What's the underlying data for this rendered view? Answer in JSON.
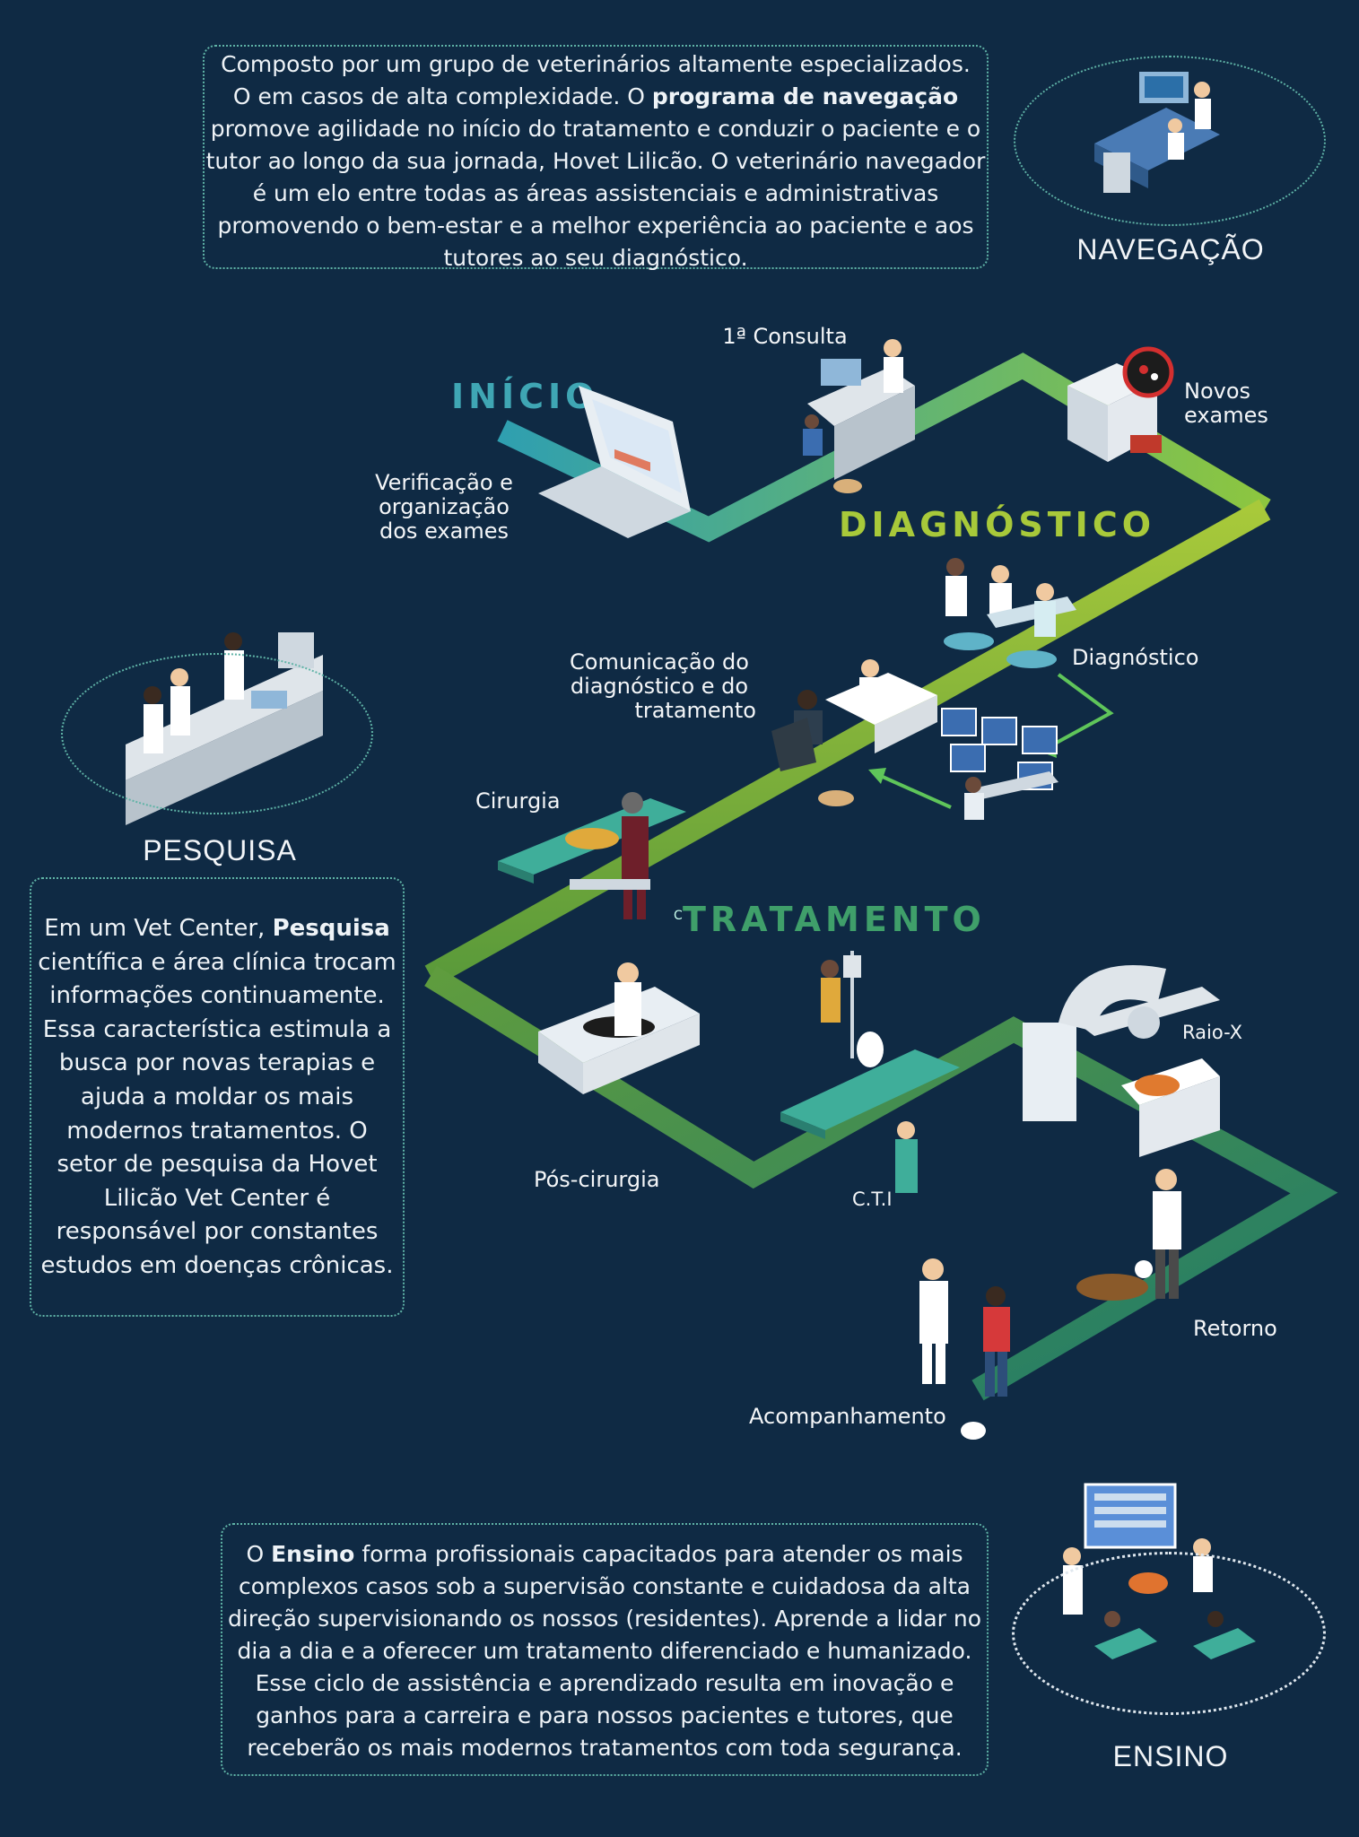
{
  "navegacao": {
    "line1": "Composto por um grupo de veterinários altamente especializados.",
    "line2": "O  em casos de alta complexidade. O ",
    "line2_bold": "programa de navegação",
    "line3": "promove agilidade no início do tratamento e conduzir o paciente e o",
    "line4": "tutor ao longo da sua jornada, Hovet Lilicão. O veterinário navegador",
    "line5": "é um elo entre todas as áreas assistenciais e administrativas",
    "line6": "promovendo o bem-estar e a melhor experiência ao paciente e aos",
    "line7": "tutores ao seu diagnóstico.",
    "title": "NAVEGAÇÃO"
  },
  "pesquisa": {
    "title": "PESQUISA",
    "line1": "Em um Vet Center, ",
    "line1_bold": "Pesquisa",
    "line2": "científica e área clínica trocam",
    "line3": "informações continuamente.",
    "line4": "Essa característica estimula a",
    "line5": "busca por novas terapias e",
    "line6": "ajuda a moldar os mais",
    "line7": "modernos tratamentos. O",
    "line8": "setor de pesquisa da Hovet",
    "line9": "Lilicão Vet Center é",
    "line10": "responsável por constantes",
    "line11": "estudos em doenças crônicas."
  },
  "ensino": {
    "title": "ENSINO",
    "line1_pre": "O ",
    "line1_bold": "Ensino",
    "line1_post": " forma profissionais capacitados para atender os mais",
    "line2": "complexos casos sob a supervisão constante e cuidadosa da alta",
    "line3": "direção supervisionando os nossos (residentes). Aprende a lidar no",
    "line4": "dia a dia e a oferecer um tratamento diferenciado e humanizado.",
    "line5": "Esse ciclo de assistência e aprendizado resulta em inovação e",
    "line6": "ganhos para a carreira e para nossos pacientes e tutores, que",
    "line7": "receberão os mais modernos tratamentos com toda segurança."
  },
  "stages": {
    "inicio": "INÍCIO",
    "diagnostico": "DIAGNÓSTICO",
    "tratamento": "TRATAMENTO",
    "tratamento_prefix": "C"
  },
  "steps": {
    "consulta": "1ª Consulta",
    "verificacao_1": "Verificação e",
    "verificacao_2": "organização",
    "verificacao_3": "dos exames",
    "novos_1": "Novos",
    "novos_2": "exames",
    "diagnostico": "Diagnóstico",
    "comunicacao_1": "Comunicação do",
    "comunicacao_2": "diagnóstico e do",
    "comunicacao_3": "tratamento",
    "cirurgia": "Cirurgia",
    "raiox": "Raio-X",
    "pos_cirurgia": "Pós-cirurgia",
    "cti": "C.T.I",
    "retorno": "Retorno",
    "acompanhamento": "Acompanhamento"
  },
  "colors": {
    "background": "#0f2a44",
    "inicio": "#3fa6b4",
    "diagnostico": "#a8c93a",
    "tratamento": "#2f8f6e",
    "border": "#5fb3a6"
  },
  "icons": [
    "navigation-team-icon",
    "research-lab-icon",
    "teaching-class-icon",
    "laptop-icon",
    "consult-desk-icon",
    "lab-machine-icon",
    "diagnosis-team-icon",
    "video-call-icon",
    "communication-desk-icon",
    "surgery-table-icon",
    "post-surgery-bed-icon",
    "icu-icon",
    "xray-machine-icon",
    "return-visit-icon",
    "follow-up-icon"
  ]
}
